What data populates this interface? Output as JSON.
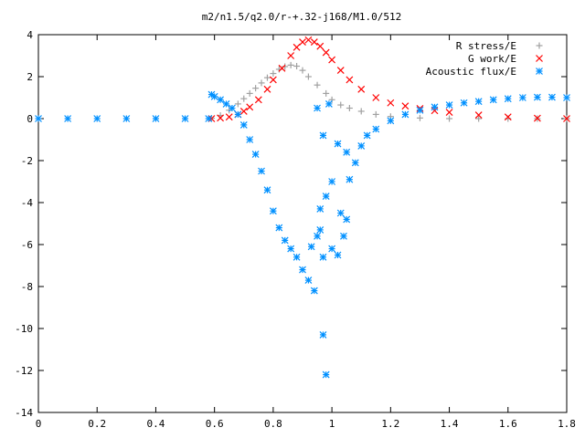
{
  "chart_data": {
    "type": "scatter",
    "title": "m2/n1.5/q2.0/r-+.32-j168/M1.0/512",
    "xlim": [
      0,
      1.8
    ],
    "ylim": [
      -14,
      4
    ],
    "x_ticks": [
      "0",
      "0.2",
      "0.4",
      "0.6",
      "0.8",
      "1",
      "1.2",
      "1.4",
      "1.6",
      "1.8"
    ],
    "y_ticks": [
      "4",
      "2",
      "0",
      "-2",
      "-4",
      "-6",
      "-8",
      "-10",
      "-12",
      "-14"
    ],
    "legend_position": "top-right",
    "grid": false,
    "series": [
      {
        "name": "R stress/E",
        "color": "#a0a0a0",
        "marker": "plus",
        "points": [
          [
            0.59,
            0.02
          ],
          [
            0.62,
            0.15
          ],
          [
            0.65,
            0.4
          ],
          [
            0.68,
            0.7
          ],
          [
            0.7,
            0.95
          ],
          [
            0.72,
            1.2
          ],
          [
            0.74,
            1.45
          ],
          [
            0.76,
            1.7
          ],
          [
            0.78,
            1.95
          ],
          [
            0.8,
            2.15
          ],
          [
            0.82,
            2.35
          ],
          [
            0.84,
            2.48
          ],
          [
            0.86,
            2.55
          ],
          [
            0.88,
            2.5
          ],
          [
            0.9,
            2.3
          ],
          [
            0.92,
            2.0
          ],
          [
            0.95,
            1.6
          ],
          [
            0.98,
            1.2
          ],
          [
            1.0,
            0.9
          ],
          [
            1.03,
            0.65
          ],
          [
            1.06,
            0.5
          ],
          [
            1.1,
            0.35
          ],
          [
            1.15,
            0.2
          ],
          [
            1.2,
            0.1
          ],
          [
            1.3,
            0.03
          ],
          [
            1.4,
            0.0
          ],
          [
            1.5,
            0.0
          ],
          [
            1.6,
            0.0
          ],
          [
            1.7,
            0.0
          ],
          [
            1.8,
            0.0
          ]
        ]
      },
      {
        "name": "G work/E",
        "color": "#ff0000",
        "marker": "cross",
        "points": [
          [
            0.59,
            0.0
          ],
          [
            0.62,
            0.03
          ],
          [
            0.65,
            0.08
          ],
          [
            0.68,
            0.2
          ],
          [
            0.7,
            0.35
          ],
          [
            0.72,
            0.55
          ],
          [
            0.75,
            0.9
          ],
          [
            0.78,
            1.4
          ],
          [
            0.8,
            1.85
          ],
          [
            0.83,
            2.4
          ],
          [
            0.86,
            3.0
          ],
          [
            0.88,
            3.4
          ],
          [
            0.9,
            3.65
          ],
          [
            0.92,
            3.75
          ],
          [
            0.94,
            3.65
          ],
          [
            0.96,
            3.45
          ],
          [
            0.98,
            3.15
          ],
          [
            1.0,
            2.8
          ],
          [
            1.03,
            2.3
          ],
          [
            1.06,
            1.85
          ],
          [
            1.1,
            1.4
          ],
          [
            1.15,
            1.0
          ],
          [
            1.2,
            0.75
          ],
          [
            1.25,
            0.6
          ],
          [
            1.3,
            0.48
          ],
          [
            1.35,
            0.38
          ],
          [
            1.4,
            0.3
          ],
          [
            1.5,
            0.17
          ],
          [
            1.6,
            0.08
          ],
          [
            1.7,
            0.02
          ],
          [
            1.8,
            0.0
          ]
        ]
      },
      {
        "name": "Acoustic flux/E",
        "color": "#0090ff",
        "marker": "star",
        "points": [
          [
            0.0,
            0.0
          ],
          [
            0.1,
            0.0
          ],
          [
            0.2,
            0.0
          ],
          [
            0.3,
            0.0
          ],
          [
            0.4,
            0.0
          ],
          [
            0.5,
            0.0
          ],
          [
            0.58,
            0.0
          ],
          [
            0.59,
            1.15
          ],
          [
            0.6,
            1.05
          ],
          [
            0.62,
            0.9
          ],
          [
            0.64,
            0.7
          ],
          [
            0.66,
            0.5
          ],
          [
            0.68,
            0.2
          ],
          [
            0.7,
            -0.3
          ],
          [
            0.72,
            -1.0
          ],
          [
            0.74,
            -1.7
          ],
          [
            0.76,
            -2.5
          ],
          [
            0.78,
            -3.4
          ],
          [
            0.8,
            -4.4
          ],
          [
            0.82,
            -5.2
          ],
          [
            0.84,
            -5.8
          ],
          [
            0.86,
            -6.2
          ],
          [
            0.88,
            -6.6
          ],
          [
            0.9,
            -7.2
          ],
          [
            0.92,
            -7.7
          ],
          [
            0.94,
            -8.2
          ],
          [
            0.93,
            -6.1
          ],
          [
            0.95,
            -5.6
          ],
          [
            0.96,
            -5.3
          ],
          [
            0.97,
            -6.6
          ],
          [
            0.97,
            -10.3
          ],
          [
            0.98,
            -12.2
          ],
          [
            0.96,
            -4.3
          ],
          [
            0.98,
            -3.7
          ],
          [
            1.0,
            -3.0
          ],
          [
            1.0,
            -6.2
          ],
          [
            1.02,
            -6.5
          ],
          [
            1.04,
            -5.6
          ],
          [
            1.06,
            -2.9
          ],
          [
            1.08,
            -2.1
          ],
          [
            1.1,
            -1.3
          ],
          [
            1.12,
            -0.8
          ],
          [
            1.15,
            -0.5
          ],
          [
            1.2,
            -0.1
          ],
          [
            1.25,
            0.2
          ],
          [
            1.3,
            0.4
          ],
          [
            1.35,
            0.55
          ],
          [
            1.4,
            0.65
          ],
          [
            1.45,
            0.75
          ],
          [
            1.5,
            0.82
          ],
          [
            1.55,
            0.9
          ],
          [
            1.6,
            0.95
          ],
          [
            1.65,
            1.0
          ],
          [
            1.7,
            1.02
          ],
          [
            1.75,
            1.02
          ],
          [
            1.8,
            1.0
          ],
          [
            0.95,
            0.5
          ],
          [
            0.99,
            0.7
          ],
          [
            1.02,
            -1.2
          ],
          [
            1.05,
            -1.6
          ],
          [
            0.97,
            -0.8
          ],
          [
            1.03,
            -4.5
          ],
          [
            1.05,
            -4.8
          ]
        ]
      }
    ]
  }
}
